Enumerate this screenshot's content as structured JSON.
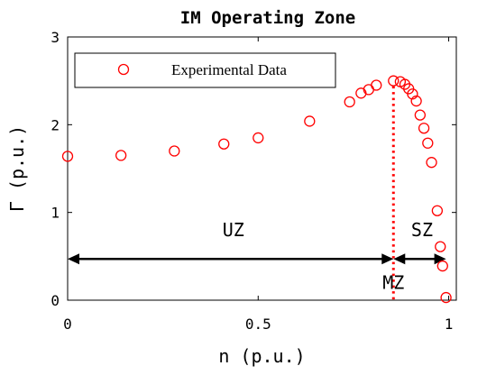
{
  "chart_data": {
    "type": "scatter",
    "title": "IM Operating Zone",
    "xlabel": "n (p.u.)",
    "ylabel": "Γ (p.u.)",
    "xlim": [
      0,
      1.02
    ],
    "ylim": [
      0,
      3
    ],
    "x_ticks": [
      0,
      0.5,
      1
    ],
    "x_tick_labels": [
      "0",
      "0.5",
      "1"
    ],
    "y_ticks": [
      0,
      1,
      2,
      3
    ],
    "y_tick_labels": [
      "0",
      "1",
      "2",
      "3"
    ],
    "grid": false,
    "legend_position": "top-left",
    "series": [
      {
        "name": "Experimental Data",
        "marker": "circle",
        "color": "#ff0000",
        "points": [
          {
            "x": 0.0,
            "y": 1.64
          },
          {
            "x": 0.14,
            "y": 1.65
          },
          {
            "x": 0.28,
            "y": 1.7
          },
          {
            "x": 0.41,
            "y": 1.78
          },
          {
            "x": 0.5,
            "y": 1.85
          },
          {
            "x": 0.635,
            "y": 2.04
          },
          {
            "x": 0.74,
            "y": 2.26
          },
          {
            "x": 0.77,
            "y": 2.36
          },
          {
            "x": 0.79,
            "y": 2.4
          },
          {
            "x": 0.81,
            "y": 2.45
          },
          {
            "x": 0.855,
            "y": 2.5
          },
          {
            "x": 0.873,
            "y": 2.49
          },
          {
            "x": 0.885,
            "y": 2.46
          },
          {
            "x": 0.895,
            "y": 2.41
          },
          {
            "x": 0.905,
            "y": 2.35
          },
          {
            "x": 0.915,
            "y": 2.27
          },
          {
            "x": 0.925,
            "y": 2.11
          },
          {
            "x": 0.935,
            "y": 1.96
          },
          {
            "x": 0.945,
            "y": 1.79
          },
          {
            "x": 0.955,
            "y": 1.57
          },
          {
            "x": 0.97,
            "y": 1.02
          },
          {
            "x": 0.978,
            "y": 0.61
          },
          {
            "x": 0.984,
            "y": 0.39
          },
          {
            "x": 0.993,
            "y": 0.03
          }
        ]
      }
    ],
    "annotations": {
      "boundary_line": {
        "x": 0.855,
        "style": "dotted",
        "color": "#ff0000"
      },
      "arrow_y": 0.47,
      "zones": [
        {
          "label": "UZ",
          "from": 0.0,
          "to": 0.855,
          "label_x": 0.435,
          "label_y": 0.8
        },
        {
          "label": "MZ",
          "at": 0.855,
          "label_x": 0.855,
          "label_y": 0.2
        },
        {
          "label": "SZ",
          "from": 0.855,
          "to": 0.993,
          "label_x": 0.93,
          "label_y": 0.8
        }
      ]
    }
  }
}
